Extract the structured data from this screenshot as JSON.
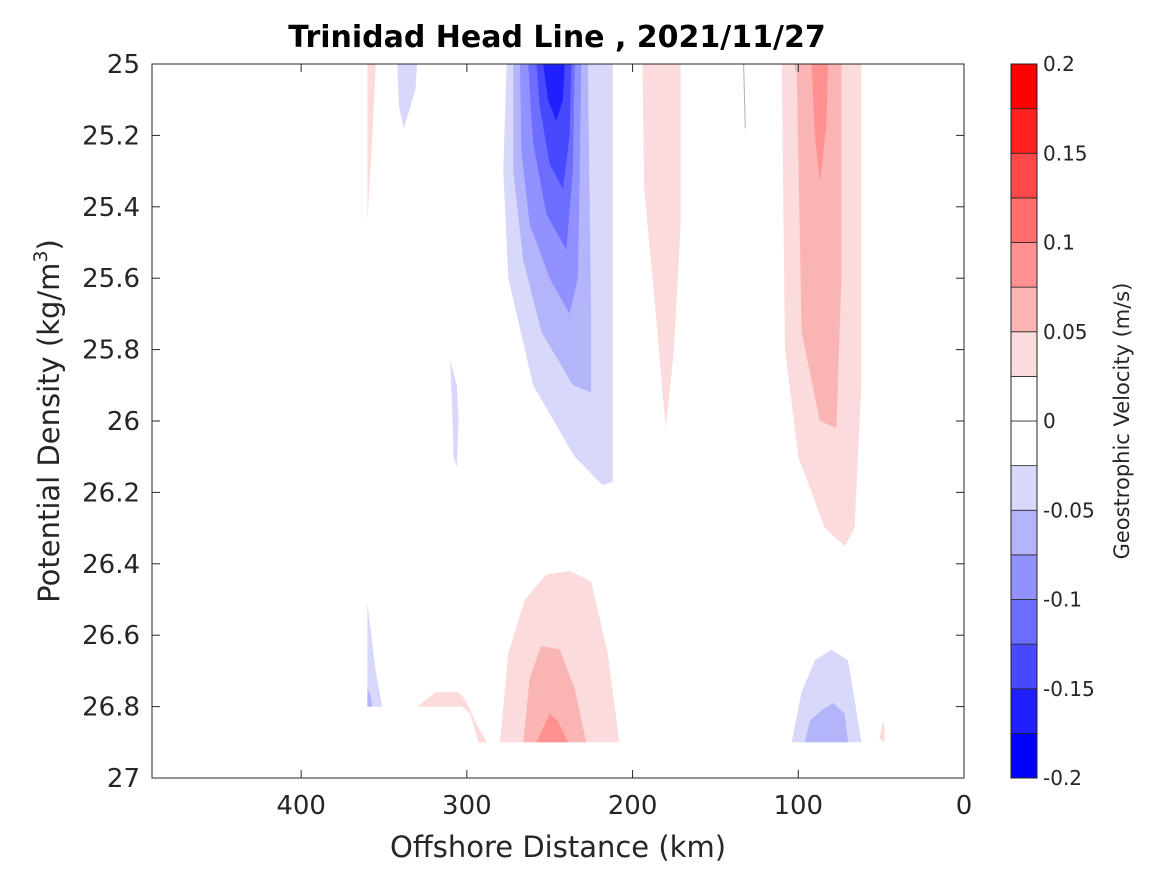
{
  "chart_data": {
    "type": "contour",
    "title": "Trinidad Head Line , 2021/11/27",
    "xlabel": "Offshore Distance (km)",
    "ylabel": "Potential Density (kg/m^3)",
    "ylabel_main": "Potential Density (kg/m",
    "ylabel_sup": "3",
    "ylabel_close": ")",
    "xlim": [
      490,
      0
    ],
    "ylim": [
      25,
      27
    ],
    "x_reversed": true,
    "y_reversed": true,
    "grid": false,
    "xticks": [
      {
        "value": 400,
        "label": "400"
      },
      {
        "value": 300,
        "label": "300"
      },
      {
        "value": 200,
        "label": "200"
      },
      {
        "value": 100,
        "label": "100"
      },
      {
        "value": 0,
        "label": "0"
      }
    ],
    "yticks": [
      {
        "value": 25,
        "label": "25"
      },
      {
        "value": 25.2,
        "label": "25.2"
      },
      {
        "value": 25.4,
        "label": "25.4"
      },
      {
        "value": 25.6,
        "label": "25.6"
      },
      {
        "value": 25.8,
        "label": "25.8"
      },
      {
        "value": 26,
        "label": "26"
      },
      {
        "value": 26.2,
        "label": "26.2"
      },
      {
        "value": 26.4,
        "label": "26.4"
      },
      {
        "value": 26.6,
        "label": "26.6"
      },
      {
        "value": 26.8,
        "label": "26.8"
      },
      {
        "value": 27,
        "label": "27"
      }
    ],
    "colorbar": {
      "label": "Geostrophic Velocity (m/s)",
      "min": -0.2,
      "max": 0.2,
      "levels": [
        -0.2,
        -0.175,
        -0.15,
        -0.125,
        -0.1,
        -0.075,
        -0.05,
        -0.025,
        0,
        0.025,
        0.05,
        0.075,
        0.1,
        0.125,
        0.15,
        0.175,
        0.2
      ],
      "colors": [
        "#0000ff",
        "#2020ff",
        "#4848ff",
        "#6d6dff",
        "#9191ff",
        "#b4b4fb",
        "#d8d8fb",
        "#ffffff",
        "#ffffff",
        "#fbdbdb",
        "#fbb4b4",
        "#ff9191",
        "#ff6d6d",
        "#ff4848",
        "#ff2020",
        "#ff0000"
      ],
      "ticks": [
        {
          "value": 0.2,
          "label": "0.2"
        },
        {
          "value": 0.15,
          "label": "0.15"
        },
        {
          "value": 0.1,
          "label": "0.1"
        },
        {
          "value": 0.05,
          "label": "0.05"
        },
        {
          "value": 0,
          "label": "0"
        },
        {
          "value": -0.05,
          "label": "-0.05"
        },
        {
          "value": -0.1,
          "label": "-0.1"
        },
        {
          "value": -0.15,
          "label": "-0.15"
        },
        {
          "value": -0.2,
          "label": "-0.2"
        }
      ]
    },
    "regions": [
      {
        "name": "neg-core-upper",
        "level": -0.025,
        "color": "#d8d8fb",
        "points": [
          [
            276,
            25
          ],
          [
            212,
            25
          ],
          [
            212,
            26.17
          ],
          [
            218,
            26.18
          ],
          [
            235,
            26.1
          ],
          [
            260,
            25.9
          ],
          [
            275,
            25.6
          ],
          [
            278,
            25.3
          ]
        ]
      },
      {
        "name": "neg-core-upper",
        "level": -0.05,
        "color": "#b4b4fb",
        "points": [
          [
            272,
            25
          ],
          [
            227,
            25
          ],
          [
            225,
            25.7
          ],
          [
            225,
            25.92
          ],
          [
            236,
            25.9
          ],
          [
            255,
            25.75
          ],
          [
            266,
            25.55
          ],
          [
            272,
            25.3
          ]
        ]
      },
      {
        "name": "neg-core-upper",
        "level": -0.075,
        "color": "#9191ff",
        "points": [
          [
            268,
            25
          ],
          [
            231,
            25
          ],
          [
            232,
            25.35
          ],
          [
            233,
            25.6
          ],
          [
            238,
            25.7
          ],
          [
            250,
            25.6
          ],
          [
            262,
            25.45
          ],
          [
            267,
            25.25
          ]
        ]
      },
      {
        "name": "neg-core-upper",
        "level": -0.1,
        "color": "#6d6dff",
        "points": [
          [
            263,
            25
          ],
          [
            235,
            25
          ],
          [
            236,
            25.3
          ],
          [
            240,
            25.52
          ],
          [
            252,
            25.42
          ],
          [
            260,
            25.22
          ]
        ]
      },
      {
        "name": "neg-core-upper",
        "level": -0.125,
        "color": "#4848ff",
        "points": [
          [
            258,
            25
          ],
          [
            237,
            25
          ],
          [
            238,
            25.2
          ],
          [
            242,
            25.35
          ],
          [
            250,
            25.28
          ],
          [
            256,
            25.12
          ]
        ]
      },
      {
        "name": "neg-core-upper",
        "level": -0.15,
        "color": "#2020ff",
        "points": [
          [
            254,
            25
          ],
          [
            241,
            25
          ],
          [
            242,
            25.1
          ],
          [
            246,
            25.16
          ],
          [
            251,
            25.1
          ]
        ]
      },
      {
        "name": "neg-west-small",
        "level": -0.025,
        "color": "#d8d8fb",
        "points": [
          [
            342,
            25
          ],
          [
            330,
            25
          ],
          [
            331,
            25.07
          ],
          [
            338,
            25.18
          ],
          [
            341,
            25.12
          ]
        ]
      },
      {
        "name": "neg-west-thin",
        "level": -0.025,
        "color": "#d8d8fb",
        "points": [
          [
            310,
            25.83
          ],
          [
            306,
            25.9
          ],
          [
            305,
            26.0
          ],
          [
            306,
            26.13
          ],
          [
            308,
            26.1
          ],
          [
            309,
            25.95
          ]
        ]
      },
      {
        "name": "pos-west-sliver",
        "level": 0.025,
        "color": "#fbdbdb",
        "points": [
          [
            360,
            25
          ],
          [
            355,
            25
          ],
          [
            357,
            25.2
          ],
          [
            360,
            25.44
          ]
        ]
      },
      {
        "name": "pos-mid-band",
        "level": 0.025,
        "color": "#fbdbdb",
        "points": [
          [
            194,
            25
          ],
          [
            171,
            25
          ],
          [
            171,
            25.45
          ],
          [
            175,
            25.8
          ],
          [
            180,
            26.02
          ],
          [
            186,
            25.7
          ],
          [
            193,
            25.35
          ]
        ]
      },
      {
        "name": "pos-east-core",
        "level": 0.025,
        "color": "#fbdbdb",
        "points": [
          [
            110,
            25
          ],
          [
            62,
            25
          ],
          [
            62,
            25.9
          ],
          [
            66,
            26.3
          ],
          [
            72,
            26.35
          ],
          [
            84,
            26.3
          ],
          [
            100,
            26.1
          ],
          [
            108,
            25.8
          ]
        ]
      },
      {
        "name": "pos-east-core",
        "level": 0.05,
        "color": "#fbb4b4",
        "points": [
          [
            101,
            25
          ],
          [
            74,
            25
          ],
          [
            74,
            25.6
          ],
          [
            77,
            26.02
          ],
          [
            87,
            26.0
          ],
          [
            98,
            25.75
          ]
        ]
      },
      {
        "name": "pos-east-core",
        "level": 0.075,
        "color": "#ff9191",
        "points": [
          [
            92,
            25
          ],
          [
            82,
            25
          ],
          [
            83,
            25.17
          ],
          [
            87,
            25.33
          ],
          [
            90,
            25.2
          ]
        ]
      },
      {
        "name": "pos-deep-core",
        "level": 0.025,
        "color": "#fbdbdb",
        "points": [
          [
            280,
            26.9
          ],
          [
            208,
            26.9
          ],
          [
            215,
            26.65
          ],
          [
            225,
            26.45
          ],
          [
            238,
            26.42
          ],
          [
            252,
            26.43
          ],
          [
            265,
            26.5
          ],
          [
            275,
            26.65
          ]
        ]
      },
      {
        "name": "pos-deep-core",
        "level": 0.05,
        "color": "#fbb4b4",
        "points": [
          [
            266,
            26.9
          ],
          [
            228,
            26.9
          ],
          [
            235,
            26.75
          ],
          [
            244,
            26.64
          ],
          [
            255,
            26.63
          ],
          [
            262,
            26.72
          ]
        ]
      },
      {
        "name": "pos-deep-core",
        "level": 0.075,
        "color": "#ff9191",
        "points": [
          [
            258,
            26.9
          ],
          [
            239,
            26.9
          ],
          [
            245,
            26.84
          ],
          [
            250,
            26.82
          ]
        ]
      },
      {
        "name": "pos-deep-west",
        "level": 0.025,
        "color": "#fbdbdb",
        "points": [
          [
            330,
            26.8
          ],
          [
            303,
            26.8
          ],
          [
            298,
            26.82
          ],
          [
            293,
            26.9
          ],
          [
            288,
            26.9
          ],
          [
            294,
            26.85
          ],
          [
            301,
            26.78
          ],
          [
            305,
            26.76
          ],
          [
            319,
            26.76
          ]
        ]
      },
      {
        "name": "pos-east-dot",
        "level": 0.025,
        "color": "#fbdbdb",
        "points": [
          [
            51,
            26.89
          ],
          [
            49,
            26.84
          ],
          [
            48,
            26.86
          ],
          [
            48,
            26.9
          ]
        ]
      },
      {
        "name": "neg-deep-east",
        "level": -0.025,
        "color": "#d8d8fb",
        "points": [
          [
            104,
            26.9
          ],
          [
            62,
            26.9
          ],
          [
            66,
            26.78
          ],
          [
            70,
            26.67
          ],
          [
            80,
            26.64
          ],
          [
            90,
            26.67
          ],
          [
            98,
            26.76
          ]
        ]
      },
      {
        "name": "neg-deep-east",
        "level": -0.05,
        "color": "#b4b4fb",
        "points": [
          [
            96,
            26.9
          ],
          [
            70,
            26.9
          ],
          [
            72,
            26.82
          ],
          [
            79,
            26.79
          ],
          [
            86,
            26.81
          ],
          [
            93,
            26.84
          ]
        ]
      },
      {
        "name": "neg-deep-west",
        "level": -0.025,
        "color": "#d8d8fb",
        "points": [
          [
            360,
            26.51
          ],
          [
            360,
            26.8
          ],
          [
            351,
            26.8
          ],
          [
            355,
            26.7
          ]
        ]
      },
      {
        "name": "neg-deep-west",
        "level": -0.05,
        "color": "#b4b4fb",
        "points": [
          [
            360,
            26.75
          ],
          [
            360,
            26.8
          ],
          [
            357,
            26.8
          ],
          [
            358,
            26.77
          ]
        ]
      }
    ],
    "zero_lines": [
      {
        "name": "zero-contour-line",
        "points": [
          [
            133,
            25
          ],
          [
            132,
            25.18
          ]
        ]
      },
      {
        "name": "zero-contour-line",
        "points": [
          [
            102,
            25
          ],
          [
            101,
            25.02
          ]
        ]
      }
    ]
  }
}
